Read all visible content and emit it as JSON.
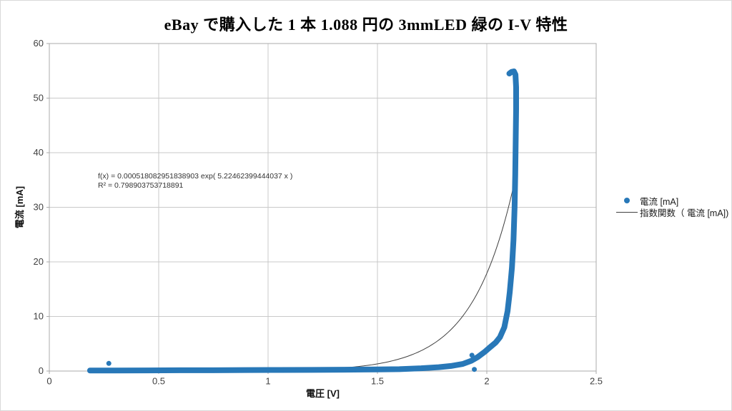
{
  "page": {
    "background": "#ffffff",
    "frame_border": "#d9d9d9"
  },
  "chart_data": {
    "type": "scatter",
    "title": "eBay で購入した 1 本 1.088 円の 3mmLED 緑の I-V 特性",
    "xlabel": "電圧 [V]",
    "ylabel": "電流 [mA]",
    "xlim": [
      0,
      2.5
    ],
    "ylim": [
      0,
      60
    ],
    "x_ticks": [
      0,
      0.5,
      1,
      1.5,
      2,
      2.5
    ],
    "x_tick_labels": [
      "0",
      "0.5",
      "1",
      "1.5",
      "2",
      "2.5"
    ],
    "y_ticks": [
      0,
      10,
      20,
      30,
      40,
      50,
      60
    ],
    "y_tick_labels": [
      "0",
      "10",
      "20",
      "30",
      "40",
      "50",
      "60"
    ],
    "grid": true,
    "legend_position": "right",
    "colors": {
      "grid": "#c9c9c9",
      "axis": "#ababab",
      "tick_text": "#404040",
      "scatter": "#2878b8",
      "fit": "#404040"
    },
    "series": [
      {
        "name": "電流 [mA]",
        "type": "scatter",
        "color": "#2878b8",
        "marker_px": 8,
        "points": [
          [
            0.186,
            0.1
          ],
          [
            0.3,
            0.1
          ],
          [
            0.45,
            0.12
          ],
          [
            0.6,
            0.15
          ],
          [
            0.75,
            0.15
          ],
          [
            0.9,
            0.18
          ],
          [
            1.05,
            0.2
          ],
          [
            1.2,
            0.22
          ],
          [
            1.35,
            0.25
          ],
          [
            1.5,
            0.3
          ],
          [
            1.6,
            0.35
          ],
          [
            1.7,
            0.5
          ],
          [
            1.78,
            0.7
          ],
          [
            1.84,
            0.95
          ],
          [
            1.89,
            1.3
          ],
          [
            1.93,
            1.9
          ],
          [
            1.96,
            2.6
          ],
          [
            1.99,
            3.5
          ],
          [
            2.01,
            4.2
          ],
          [
            2.04,
            5.2
          ],
          [
            2.06,
            6.2
          ],
          [
            2.08,
            8.0
          ],
          [
            2.095,
            11.0
          ],
          [
            2.105,
            14.5
          ],
          [
            2.115,
            19.0
          ],
          [
            2.122,
            24.0
          ],
          [
            2.127,
            30.0
          ],
          [
            2.13,
            36.0
          ],
          [
            2.132,
            42.0
          ],
          [
            2.134,
            48.0
          ],
          [
            2.134,
            52.0
          ],
          [
            2.131,
            54.3
          ],
          [
            2.124,
            54.9
          ],
          [
            2.113,
            54.8
          ],
          [
            2.103,
            54.5
          ]
        ],
        "outlier_points": [
          [
            0.272,
            1.4
          ],
          [
            1.932,
            2.9
          ],
          [
            1.943,
            0.3
          ]
        ]
      },
      {
        "name": "指数関数（ 電流 [mA])",
        "type": "exponential_fit",
        "color": "#404040",
        "a": 0.000518082951838903,
        "b": 5.22462399444037,
        "domain": [
          0.186,
          2.135
        ],
        "r_squared": 0.798903753718891
      }
    ],
    "annotation": {
      "line1": "f(x) = 0.000518082951838903 exp( 5.22462399444037 x )",
      "line2": "R² = 0.798903753718891"
    }
  }
}
